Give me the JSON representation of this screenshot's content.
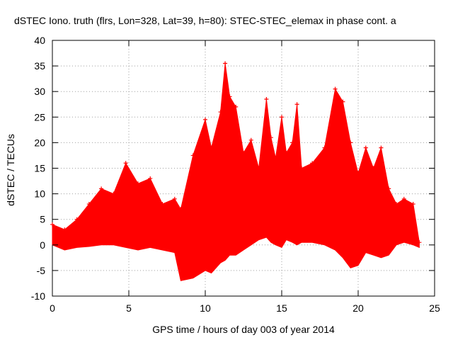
{
  "chart_data": {
    "type": "line",
    "title": "dSTEC Iono. truth (flrs, Lon=328, Lat=39, h=80): STEC-STEC_elemax in phase cont. a",
    "xlabel": "GPS time / hours of day 003 of year 2014",
    "ylabel": "dSTEC  / TECUs",
    "xlim": [
      0,
      25
    ],
    "ylim": [
      -10,
      40
    ],
    "x_ticks": [
      "0",
      "5",
      "10",
      "15",
      "20",
      "25"
    ],
    "y_ticks": [
      "-10",
      "-5",
      "0",
      "5",
      "10",
      "15",
      "20",
      "25",
      "30",
      "35",
      "40"
    ],
    "grid": true,
    "color": "#ff0000",
    "series": [
      {
        "x": [
          0.0,
          0.8,
          1.6,
          2.4,
          3.2,
          4.0,
          4.8,
          5.6,
          6.4,
          7.2,
          8.0,
          8.4,
          9.2,
          10.0,
          10.4,
          11.0,
          11.3,
          11.6,
          12.0,
          12.5,
          13.0,
          13.5,
          14.0,
          14.3,
          14.6,
          15.0,
          15.3,
          15.7,
          16.0,
          16.3,
          17.0,
          17.8,
          18.5,
          19.0,
          19.5,
          20.0,
          20.5,
          21.0,
          21.5,
          22.0,
          22.5,
          23.0,
          23.6,
          24.0
        ],
        "y_max": [
          4,
          3,
          5,
          8,
          11,
          10,
          16,
          12,
          13,
          8,
          9,
          7,
          17.5,
          24.5,
          19,
          26,
          35.5,
          29,
          27,
          18,
          20.5,
          15,
          28.5,
          21,
          17,
          25,
          18,
          20,
          27.5,
          15,
          16,
          19,
          30.5,
          28,
          20,
          14,
          19,
          15,
          19,
          11,
          8,
          9,
          8,
          0.5
        ],
        "y_min": [
          0,
          -1,
          -0.5,
          -0.3,
          0,
          0,
          -0.5,
          -1,
          -0.5,
          -1,
          -1.5,
          -7,
          -6.5,
          -5,
          -5.5,
          -3.5,
          -3,
          -2,
          -2,
          -1,
          0,
          1,
          1.5,
          0.5,
          0,
          -0.5,
          1,
          0.5,
          0,
          0.5,
          0.5,
          0,
          -1,
          -2.5,
          -4.5,
          -4,
          -1.5,
          -2,
          -2.5,
          -2,
          0,
          0.5,
          0,
          -0.5
        ]
      }
    ]
  }
}
